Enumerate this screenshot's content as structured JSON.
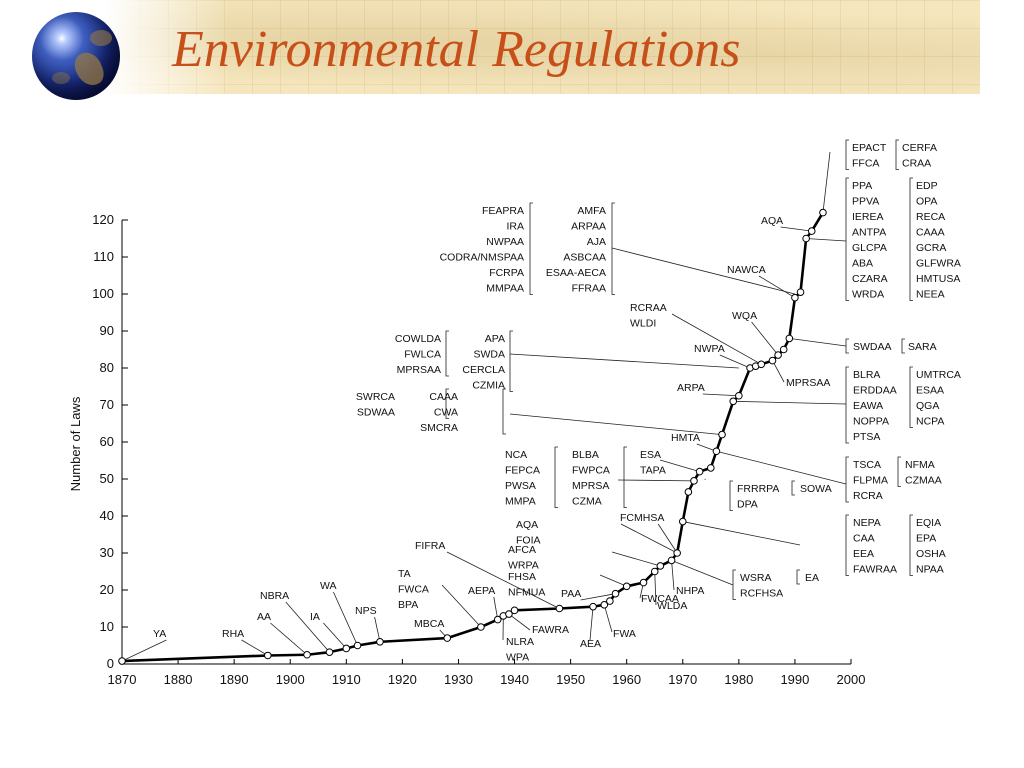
{
  "slide": {
    "title": "Environmental Regulations"
  },
  "chart_data": {
    "type": "line",
    "xlabel": "",
    "ylabel": "Number of Laws",
    "xlim": [
      1870,
      2000
    ],
    "ylim": [
      0,
      120
    ],
    "x_ticks": [
      1870,
      1880,
      1890,
      1900,
      1910,
      1920,
      1930,
      1940,
      1950,
      1960,
      1970,
      1980,
      1990,
      2000
    ],
    "y_ticks": [
      0,
      10,
      20,
      30,
      40,
      50,
      60,
      70,
      80,
      90,
      100,
      110,
      120
    ],
    "grid": false,
    "points": [
      [
        1870,
        0.8
      ],
      [
        1896,
        2.3
      ],
      [
        1903,
        2.5
      ],
      [
        1907,
        3.2
      ],
      [
        1910,
        4.2
      ],
      [
        1912,
        5
      ],
      [
        1916,
        6
      ],
      [
        1928,
        7
      ],
      [
        1934,
        10
      ],
      [
        1937,
        12
      ],
      [
        1938,
        13
      ],
      [
        1939,
        13.5
      ],
      [
        1940,
        14.5
      ],
      [
        1948,
        15
      ],
      [
        1954,
        15.5
      ],
      [
        1956,
        16
      ],
      [
        1957,
        17
      ],
      [
        1958,
        19
      ],
      [
        1960,
        21
      ],
      [
        1963,
        22
      ],
      [
        1965,
        25
      ],
      [
        1966,
        26.5
      ],
      [
        1968,
        28
      ],
      [
        1969,
        30
      ],
      [
        1970,
        38.5
      ],
      [
        1971,
        46.5
      ],
      [
        1972,
        49.5
      ],
      [
        1973,
        52
      ],
      [
        1975,
        53
      ],
      [
        1976,
        57.5
      ],
      [
        1977,
        62
      ],
      [
        1979,
        71
      ],
      [
        1980,
        72.5
      ],
      [
        1982,
        80
      ],
      [
        1983,
        80.5
      ],
      [
        1984,
        81
      ],
      [
        1986,
        82
      ],
      [
        1987,
        83.5
      ],
      [
        1988,
        85
      ],
      [
        1989,
        88
      ],
      [
        1990,
        99
      ],
      [
        1991,
        100.5
      ],
      [
        1992,
        115
      ],
      [
        1993,
        117
      ],
      [
        1995,
        122
      ]
    ],
    "left_labels": [
      {
        "text": "YA",
        "x": 1870,
        "y": 0.8
      },
      {
        "text": "RHA",
        "x": 1896,
        "y": 2.3
      },
      {
        "text": "AA",
        "x": 1903,
        "y": 2.5
      },
      {
        "text": "NBRA",
        "x": 1907,
        "y": 3.2
      },
      {
        "text": "IA",
        "x": 1910,
        "y": 4.2
      },
      {
        "text": "WA",
        "x": 1912,
        "y": 5
      },
      {
        "text": "NPS",
        "x": 1916,
        "y": 6
      },
      {
        "text": "MBCA",
        "x": 1928,
        "y": 7
      },
      {
        "text": "AEPA",
        "x": 1937,
        "y": 12
      },
      {
        "text": "FIFRA",
        "x": 1948,
        "y": 15
      },
      {
        "text": "PAA",
        "x": 1958,
        "y": 19
      },
      {
        "text": "FCMHSA",
        "x": 1969,
        "y": 30
      },
      {
        "text": "HMTA",
        "x": 1976,
        "y": 57.5
      },
      {
        "text": "ARPA",
        "x": 1980,
        "y": 72.5
      },
      {
        "text": "NWPA",
        "x": 1982,
        "y": 80
      },
      {
        "text": "WQA",
        "x": 1987,
        "y": 83.5
      },
      {
        "text": "NAWCA",
        "x": 1990,
        "y": 99
      },
      {
        "text": "AQA",
        "x": 1993,
        "y": 117
      }
    ],
    "annotation_groups": [
      {
        "columns": [
          [
            "TA",
            "FWCA",
            "BPA"
          ]
        ],
        "x": 1934,
        "y": 10
      },
      {
        "columns": [
          [
            "NLRA",
            "WPA"
          ]
        ],
        "x": 1938,
        "y": 13
      },
      {
        "columns": [
          [
            "FAWRA"
          ]
        ],
        "x": 1939,
        "y": 13.5
      },
      {
        "columns": [
          [
            "AEA"
          ]
        ],
        "x": 1954,
        "y": 15.5
      },
      {
        "columns": [
          [
            "FWA"
          ]
        ],
        "x": 1956,
        "y": 16
      },
      {
        "columns": [
          [
            "FHSA",
            "NFMUA"
          ]
        ],
        "x": 1960,
        "y": 21
      },
      {
        "columns": [
          [
            "FWCAA"
          ]
        ],
        "x": 1963,
        "y": 22
      },
      {
        "columns": [
          [
            "WLDA"
          ]
        ],
        "x": 1965,
        "y": 25
      },
      {
        "columns": [
          [
            "AFCA",
            "WRPA"
          ]
        ],
        "x": 1966,
        "y": 26.5
      },
      {
        "columns": [
          [
            "NHPA"
          ]
        ],
        "x": 1968,
        "y": 28
      },
      {
        "columns": [
          [
            "AQA",
            "FOIA"
          ]
        ],
        "x": 1969,
        "y": 30
      },
      {
        "columns": [
          [
            "NCA",
            "FEPCA",
            "PWSA",
            "MMPA"
          ],
          [
            "BLBA",
            "FWPCA",
            "MPRSA",
            "CZMA"
          ]
        ],
        "x": 1972,
        "y": 49.5
      },
      {
        "columns": [
          [
            "ESA",
            "TAPA"
          ]
        ],
        "x": 1973,
        "y": 52
      },
      {
        "columns": [
          [
            "FRRRPA",
            "DPA"
          ],
          [
            "SOWA"
          ]
        ],
        "x": 1974,
        "y": 50
      },
      {
        "columns": [
          [
            "CAAA",
            "CWA",
            "SMCRA"
          ],
          [
            "SWRCA",
            "SDWAA"
          ]
        ],
        "x": 1977,
        "y": 62
      },
      {
        "columns": [
          [
            "COWLDA",
            "FWLCA",
            "MPRSAA"
          ],
          [
            "APA",
            "SWDA",
            "CERCLA",
            "CZMIA"
          ]
        ],
        "x": 1980,
        "y": 80
      },
      {
        "columns": [
          [
            "RCRAA",
            "WLDI"
          ]
        ],
        "x": 1984,
        "y": 81
      },
      {
        "columns": [
          [
            "MPRSAA"
          ]
        ],
        "x": 1986,
        "y": 82
      },
      {
        "columns": [
          [
            "FEAPRA",
            "IRA",
            "NWPAA",
            "CODRA/NMSPAA",
            "FCRPA",
            "MMPAA"
          ],
          [
            "AMFA",
            "ARPAA",
            "AJA",
            "ASBCAA",
            "ESAA-AECA",
            "FFRAA"
          ]
        ],
        "x": 1990,
        "y": 100
      },
      {
        "columns": [
          [
            "EPACT",
            "FFCA"
          ],
          [
            "CERFA",
            "CRAA"
          ]
        ],
        "x": 1995,
        "y": 122
      },
      {
        "columns": [
          [
            "PPA",
            "PPVA",
            "IEREA",
            "ANTPA",
            "GLCPA",
            "ABA",
            "CZARA",
            "WRDA"
          ],
          [
            "EDP",
            "OPA",
            "RECA",
            "CAAA",
            "GCRA",
            "GLFWRA",
            "HMTUSA",
            "NEEA"
          ]
        ],
        "x": 1992,
        "y": 115
      },
      {
        "columns": [
          [
            "SWDAA"
          ],
          [
            "SARA"
          ]
        ],
        "x": 1989,
        "y": 88
      },
      {
        "columns": [
          [
            "BLRA",
            "ERDDAA",
            "EAWA",
            "NOPPA",
            "PTSA"
          ],
          [
            "UMTRCA",
            "ESAA",
            "QGA",
            "NCPA"
          ]
        ],
        "x": 1979,
        "y": 71
      },
      {
        "columns": [
          [
            "TSCA",
            "FLPMA",
            "RCRA"
          ],
          [
            "NFMA",
            "CZMAA"
          ]
        ],
        "x": 1976,
        "y": 57.5
      },
      {
        "columns": [
          [
            "NEPA",
            "CAA",
            "EEA",
            "FAWRAA"
          ],
          [
            "EQIA",
            "EPA",
            "OSHA",
            "NPAA"
          ]
        ],
        "x": 1970,
        "y": 38.5
      },
      {
        "columns": [
          [
            "WSRA",
            "RCFHSA"
          ],
          [
            "EA"
          ]
        ],
        "x": 1968,
        "y": 28
      }
    ]
  }
}
